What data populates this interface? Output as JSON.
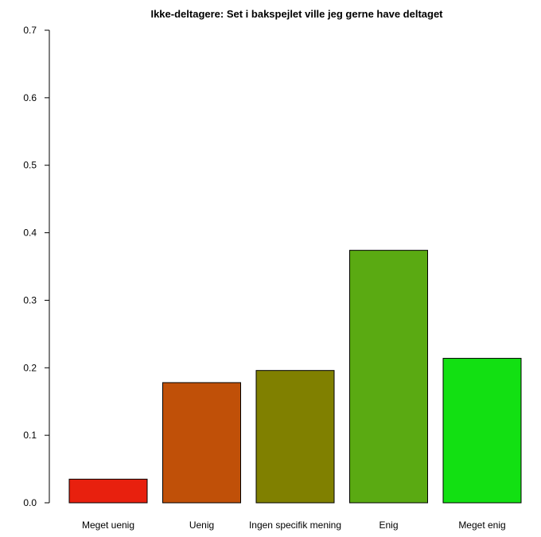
{
  "chart_data": {
    "type": "bar",
    "title": "Ikke-deltagere: Set i bakspejlet ville jeg gerne have deltaget",
    "xlabel": "",
    "ylabel": "",
    "categories": [
      "Meget uenig",
      "Uenig",
      "Ingen specifik mening",
      "Enig",
      "Meget enig"
    ],
    "values": [
      0.035,
      0.178,
      0.196,
      0.374,
      0.214
    ],
    "colors": [
      "#e8200e",
      "#c05008",
      "#808000",
      "#5aaa12",
      "#12e012"
    ],
    "ylim": [
      0,
      0.7
    ],
    "yticks": [
      "0.0",
      "0.1",
      "0.2",
      "0.3",
      "0.4",
      "0.5",
      "0.6",
      "0.7"
    ],
    "grid": false,
    "legend": "none"
  }
}
